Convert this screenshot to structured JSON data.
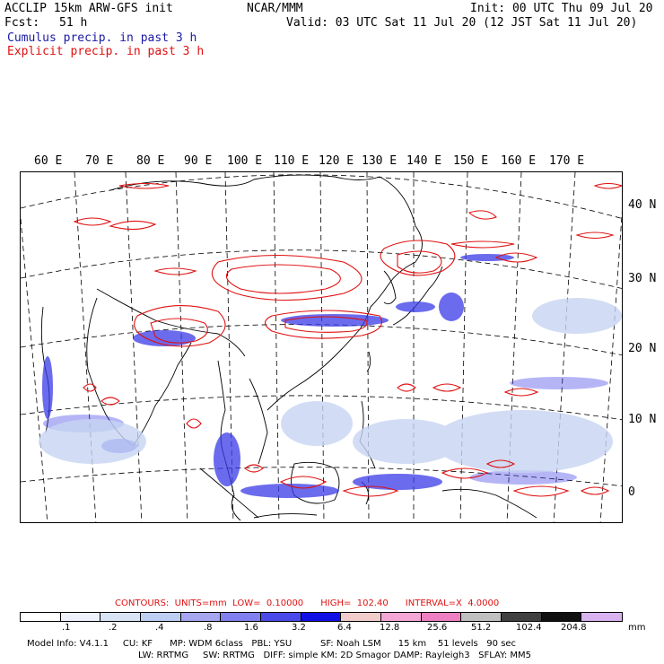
{
  "header": {
    "model_title": "ACCLIP 15km ARW-GFS init",
    "org": "NCAR/MMM",
    "init": "Init: 00 UTC Thu 09 Jul 20",
    "fcst_label": "Fcst:",
    "fcst_value": "51 h",
    "valid": "Valid: 03 UTC Sat 11 Jul 20 (12 JST Sat 11 Jul 20)",
    "legend_cumulus": "Cumulus precip. in past 3 h",
    "legend_explicit": "Explicit precip. in past 3 h"
  },
  "map": {
    "longitude_labels": [
      "60 E",
      "70 E",
      "80 E",
      "90 E",
      "100 E",
      "110 E",
      "120 E",
      "130 E",
      "140 E",
      "150 E",
      "160 E",
      "170 E"
    ],
    "latitude_labels": [
      "40 N",
      "30 N",
      "20 N",
      "10 N",
      "0"
    ]
  },
  "contours": {
    "label": "CONTOURS:",
    "units": "UNITS=mm",
    "low": "LOW=  0.10000",
    "high": "HIGH=  102.40",
    "interval": "INTERVAL=X  4.0000"
  },
  "colorbar": {
    "bins": [
      "#ffffff",
      "#eef3fb",
      "#d8e4f6",
      "#bccff2",
      "#a6a6f0",
      "#8080ee",
      "#4a4aea",
      "#1010e6",
      "#f2cbcb",
      "#f4a6d6",
      "#ee7fc0",
      "#c0c0c0",
      "#404040",
      "#101010",
      "#d9b3f0"
    ],
    "tick_labels": [
      ".1",
      ".2",
      ".4",
      ".8",
      "1.6",
      "3.2",
      "6.4",
      "12.8",
      "25.6",
      "51.2",
      "102.4",
      "204.8"
    ],
    "unit": "mm"
  },
  "model_info": {
    "line1": "Model Info: V4.1.1     CU: KF      MP: WDM 6class   PBL: YSU          SF: Noah LSM      15 km    51 levels   90 sec",
    "line2": "LW: RRTMG     SW: RRTMG   DIFF: simple KM: 2D Smagor DAMP: Rayleigh3   SFLAY: MM5"
  }
}
